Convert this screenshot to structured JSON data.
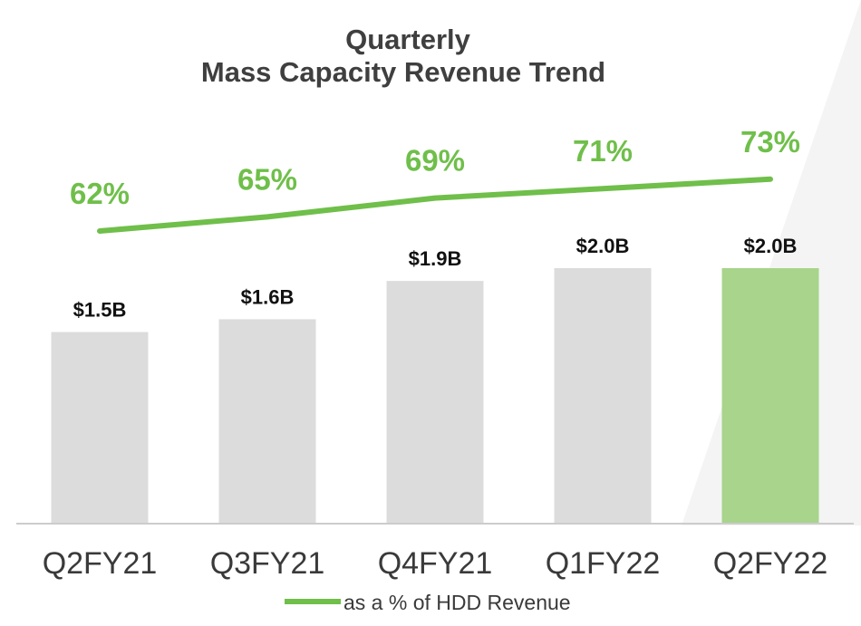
{
  "colors": {
    "bar": "#dcdcdc",
    "bar_highlight": "#a8d48b",
    "line": "#6fbf4a",
    "pct_text": "#6fbf4a",
    "title_text": "#3f3f3f",
    "axis": "#cccccc",
    "background_accent": "#f4f4f4"
  },
  "chart_data": {
    "type": "bar",
    "title": "Quarterly",
    "subtitle": "Mass Capacity Revenue Trend",
    "categories": [
      "Q2FY21",
      "Q3FY21",
      "Q4FY21",
      "Q1FY22",
      "Q2FY22"
    ],
    "series": [
      {
        "name": "",
        "values": [
          1.5,
          1.6,
          1.9,
          2.0,
          2.0
        ],
        "value_labels": [
          "$1.5B",
          "$1.6B",
          "$1.9B",
          "$2.0B",
          "$2.0B"
        ],
        "highlight_index": 4
      },
      {
        "name": "as a % of HDD Revenue",
        "type": "line",
        "values": [
          62,
          65,
          69,
          71,
          73
        ],
        "value_labels": [
          "62%",
          "65%",
          "69%",
          "71%",
          "73%"
        ]
      }
    ],
    "legend": "bottom",
    "grid": false,
    "ylim": [
      0,
      3.1
    ]
  }
}
